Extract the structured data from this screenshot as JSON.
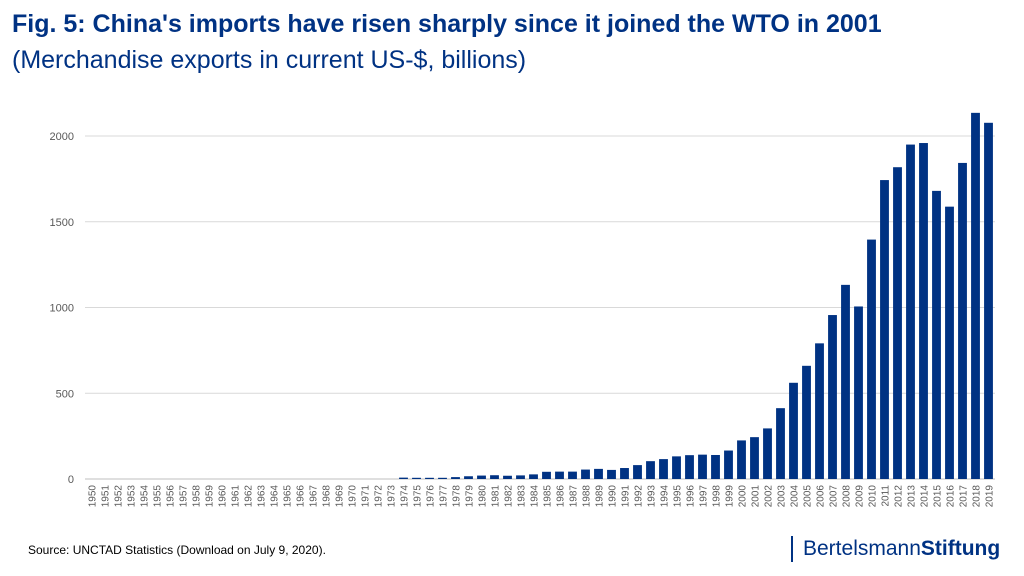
{
  "title": "Fig. 5: China's imports have risen sharply since it joined the WTO in 2001",
  "subtitle": "(Merchandise exports in current US-$, billions)",
  "source": "Source: UNCTAD Statistics (Download on July 9, 2020).",
  "logo": {
    "part1": "Bertelsmann",
    "part2": "Stiftung"
  },
  "chart_data": {
    "type": "bar",
    "title": "",
    "xlabel": "",
    "ylabel": "",
    "ylim": [
      0,
      2200
    ],
    "yticks": [
      0,
      500,
      1000,
      1500,
      2000
    ],
    "grid": true,
    "bar_color": "#003283",
    "categories": [
      "1950",
      "1951",
      "1952",
      "1953",
      "1954",
      "1955",
      "1956",
      "1957",
      "1958",
      "1959",
      "1960",
      "1961",
      "1962",
      "1963",
      "1964",
      "1965",
      "1966",
      "1967",
      "1968",
      "1969",
      "1970",
      "1971",
      "1972",
      "1973",
      "1974",
      "1975",
      "1976",
      "1977",
      "1978",
      "1979",
      "1980",
      "1981",
      "1982",
      "1983",
      "1984",
      "1985",
      "1986",
      "1987",
      "1988",
      "1989",
      "1990",
      "1991",
      "1992",
      "1993",
      "1994",
      "1995",
      "1996",
      "1997",
      "1998",
      "1999",
      "2000",
      "2001",
      "2002",
      "2003",
      "2004",
      "2005",
      "2006",
      "2007",
      "2008",
      "2009",
      "2010",
      "2011",
      "2012",
      "2013",
      "2014",
      "2015",
      "2016",
      "2017",
      "2018",
      "2019"
    ],
    "values": [
      null,
      null,
      null,
      null,
      null,
      null,
      null,
      null,
      null,
      null,
      null,
      null,
      null,
      null,
      null,
      null,
      null,
      null,
      null,
      null,
      null,
      null,
      null,
      null,
      8,
      7,
      7,
      7,
      11,
      16,
      20,
      22,
      19,
      21,
      27,
      42,
      43,
      43,
      55,
      59,
      53,
      64,
      81,
      104,
      116,
      132,
      139,
      142,
      140,
      166,
      225,
      244,
      295,
      413,
      561,
      660,
      791,
      956,
      1132,
      1006,
      1396,
      1743,
      1818,
      1950,
      1959,
      1680,
      1588,
      1843,
      2135,
      2077
    ]
  }
}
